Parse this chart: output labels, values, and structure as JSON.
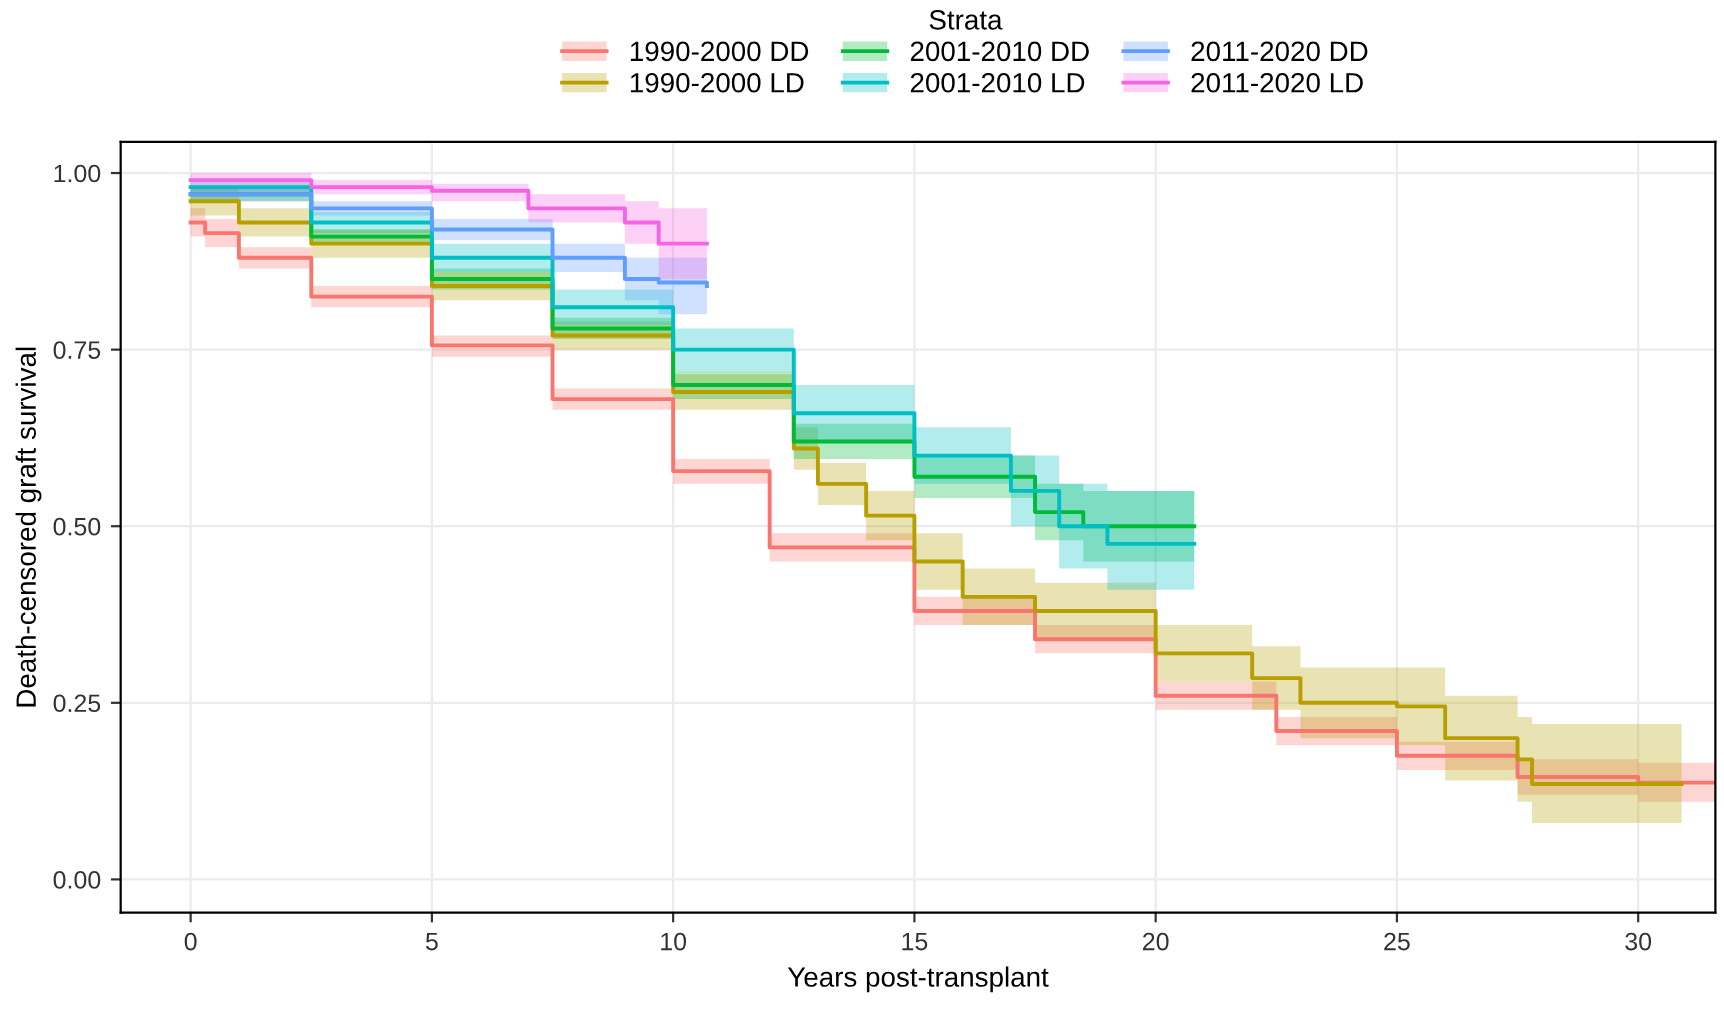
{
  "chart_data": {
    "type": "step",
    "xlabel": "Years post-transplant",
    "ylabel": "Death-censored graft survival",
    "legend_title": "Strata",
    "legend": "top",
    "grid": true,
    "xlim": [
      -1.45,
      31.6
    ],
    "ylim": [
      -0.047,
      1.044
    ],
    "xticks": [
      0,
      5,
      10,
      15,
      20,
      25,
      30
    ],
    "yticks": [
      {
        "value": 0,
        "label": "0.00"
      },
      {
        "value": 0.25,
        "label": "0.25"
      },
      {
        "value": 0.5,
        "label": "0.50"
      },
      {
        "value": 0.75,
        "label": "0.75"
      },
      {
        "value": 1,
        "label": "1.00"
      }
    ],
    "series": [
      {
        "name": "1990-2000 DD",
        "color": "#F8766D",
        "x": [
          0,
          0.3,
          1,
          2.5,
          5,
          7.5,
          10,
          12,
          15,
          17.5,
          20,
          22.5,
          25,
          27.5,
          30,
          31.6
        ],
        "values": [
          0.93,
          0.915,
          0.88,
          0.825,
          0.756,
          0.68,
          0.578,
          0.47,
          0.38,
          0.34,
          0.26,
          0.21,
          0.175,
          0.145,
          0.137,
          0.137
        ],
        "lower": [
          0.91,
          0.895,
          0.865,
          0.81,
          0.74,
          0.665,
          0.56,
          0.45,
          0.36,
          0.32,
          0.24,
          0.19,
          0.155,
          0.12,
          0.11,
          0.11
        ],
        "upper": [
          0.95,
          0.935,
          0.895,
          0.84,
          0.77,
          0.695,
          0.595,
          0.49,
          0.4,
          0.36,
          0.28,
          0.23,
          0.195,
          0.17,
          0.165,
          0.165
        ]
      },
      {
        "name": "1990-2000 LD",
        "color": "#B79F00",
        "x": [
          0,
          1,
          2.5,
          5,
          7.5,
          10,
          12.5,
          13,
          14,
          15,
          16,
          17.5,
          20,
          22,
          23,
          25,
          26,
          27.5,
          27.8,
          30.9
        ],
        "values": [
          0.96,
          0.93,
          0.9,
          0.84,
          0.77,
          0.69,
          0.61,
          0.56,
          0.515,
          0.45,
          0.4,
          0.38,
          0.32,
          0.285,
          0.25,
          0.245,
          0.2,
          0.17,
          0.135,
          0.135
        ],
        "lower": [
          0.94,
          0.91,
          0.88,
          0.82,
          0.75,
          0.665,
          0.58,
          0.53,
          0.48,
          0.41,
          0.36,
          0.34,
          0.28,
          0.24,
          0.2,
          0.19,
          0.14,
          0.11,
          0.08,
          0.08
        ],
        "upper": [
          0.98,
          0.95,
          0.92,
          0.86,
          0.79,
          0.715,
          0.64,
          0.59,
          0.55,
          0.49,
          0.44,
          0.42,
          0.36,
          0.33,
          0.3,
          0.3,
          0.26,
          0.23,
          0.22,
          0.22
        ]
      },
      {
        "name": "2001-2010 DD",
        "color": "#00BA38",
        "x": [
          0,
          2.5,
          5,
          7.5,
          10,
          12.5,
          15,
          17.5,
          18.5,
          20.8
        ],
        "values": [
          0.97,
          0.91,
          0.85,
          0.78,
          0.7,
          0.62,
          0.57,
          0.52,
          0.5,
          0.5
        ],
        "lower": [
          0.96,
          0.9,
          0.835,
          0.765,
          0.68,
          0.595,
          0.54,
          0.48,
          0.45,
          0.45
        ],
        "upper": [
          0.98,
          0.92,
          0.865,
          0.795,
          0.72,
          0.645,
          0.6,
          0.56,
          0.55,
          0.55
        ]
      },
      {
        "name": "2001-2010 LD",
        "color": "#00BFC4",
        "x": [
          0,
          2.5,
          5,
          7.5,
          10,
          12.5,
          15,
          17,
          18,
          19,
          20.8
        ],
        "values": [
          0.98,
          0.93,
          0.88,
          0.81,
          0.75,
          0.66,
          0.6,
          0.55,
          0.5,
          0.475,
          0.475
        ],
        "lower": [
          0.97,
          0.915,
          0.86,
          0.785,
          0.72,
          0.62,
          0.56,
          0.5,
          0.44,
          0.41,
          0.41
        ],
        "upper": [
          0.99,
          0.945,
          0.9,
          0.835,
          0.78,
          0.7,
          0.64,
          0.6,
          0.56,
          0.55,
          0.55
        ]
      },
      {
        "name": "2011-2020 DD",
        "color": "#619CFF",
        "x": [
          0,
          2.5,
          5,
          7.5,
          9,
          9.7,
          10.7
        ],
        "values": [
          0.97,
          0.95,
          0.92,
          0.88,
          0.85,
          0.845,
          0.84
        ],
        "lower": [
          0.96,
          0.94,
          0.905,
          0.86,
          0.82,
          0.8,
          0.8
        ],
        "upper": [
          0.98,
          0.96,
          0.935,
          0.9,
          0.88,
          0.88,
          0.88
        ]
      },
      {
        "name": "2011-2020 LD",
        "color": "#F564E3",
        "x": [
          0,
          2.5,
          5,
          7,
          9,
          9.7,
          10.7
        ],
        "values": [
          0.99,
          0.98,
          0.975,
          0.95,
          0.93,
          0.9,
          0.9
        ],
        "lower": [
          0.975,
          0.97,
          0.96,
          0.93,
          0.9,
          0.85,
          0.85
        ],
        "upper": [
          1.0,
          0.99,
          0.985,
          0.97,
          0.96,
          0.95,
          0.95
        ]
      }
    ]
  }
}
